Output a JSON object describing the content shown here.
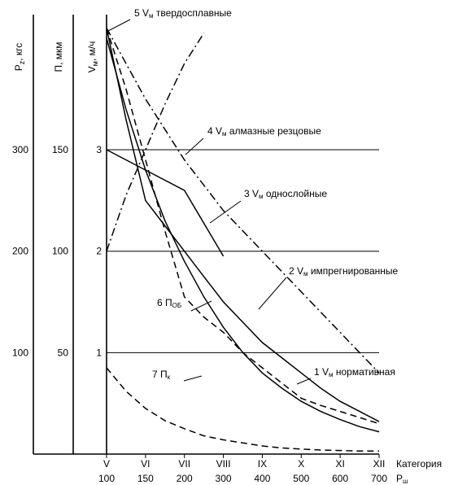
{
  "chart_data": {
    "type": "line",
    "title": "",
    "x_categories": [
      "V",
      "VI",
      "VII",
      "VIII",
      "IX",
      "X",
      "XI",
      "XII"
    ],
    "x_p_values": [
      "100",
      "150",
      "200",
      "300",
      "400",
      "500",
      "600",
      "700"
    ],
    "x_axis_label_top": "Категория",
    "x_axis_label_bottom": "Р",
    "x_axis_label_bottom_sub": "ш",
    "axes": [
      {
        "key": "pz",
        "label": "P",
        "label_sub": "z",
        "label_suffix": ", кгс",
        "ticks": [
          "100",
          "200",
          "300"
        ],
        "tick_values": [
          100,
          200,
          300
        ]
      },
      {
        "key": "p",
        "label": "П, мкм",
        "label_sub": "",
        "label_suffix": "",
        "ticks": [
          "50",
          "100",
          "150"
        ],
        "tick_values": [
          50,
          100,
          150
        ]
      },
      {
        "key": "vm",
        "label": "V",
        "label_sub": "м",
        "label_suffix": ", м/ч",
        "ticks": [
          "1",
          "2",
          "3"
        ],
        "tick_values": [
          1,
          2,
          3
        ]
      }
    ],
    "ylim_vm": [
      0,
      4.3
    ],
    "grid_vm": [
      1,
      2,
      3
    ],
    "series": [
      {
        "id": "1",
        "prefix": "1 V",
        "sub": "м",
        "suffix": " нормативная",
        "dash": "solid",
        "x": [
          0,
          0.5,
          1,
          1.5,
          2,
          2.5,
          3,
          3.5,
          4,
          4.5,
          5,
          5.5,
          6,
          6.5,
          7
        ],
        "y": [
          4.1,
          3.4,
          2.8,
          2.3,
          1.9,
          1.55,
          1.25,
          1.0,
          0.8,
          0.65,
          0.52,
          0.42,
          0.34,
          0.27,
          0.22
        ]
      },
      {
        "id": "2",
        "prefix": "2 V",
        "sub": "м",
        "suffix": " импрегнированные",
        "dash": "solid",
        "x": [
          0,
          0.5,
          1,
          1.5,
          2,
          2.5,
          3,
          3.5,
          4,
          4.5,
          5,
          5.5,
          6,
          6.5,
          7
        ],
        "y": [
          4.2,
          3.3,
          2.5,
          2.25,
          2.0,
          1.75,
          1.5,
          1.3,
          1.1,
          0.95,
          0.8,
          0.65,
          0.52,
          0.42,
          0.32
        ]
      },
      {
        "id": "3",
        "prefix": "3 V",
        "sub": "м",
        "suffix": " однослойные",
        "dash": "solid",
        "x": [
          0,
          1,
          2,
          3
        ],
        "y": [
          3.0,
          2.8,
          2.6,
          1.95
        ]
      },
      {
        "id": "4",
        "prefix": "4 V",
        "sub": "м",
        "suffix": " алмазные резцовые",
        "dash": "dashdot",
        "x": [
          0,
          0.5,
          1,
          1.5,
          2,
          2.5
        ],
        "y": [
          2.0,
          2.55,
          3.0,
          3.45,
          3.85,
          4.15
        ]
      },
      {
        "id": "5",
        "prefix": "5 V",
        "sub": "м",
        "suffix": " твердосплавные",
        "dash": "dashdot",
        "x": [
          0,
          1,
          2,
          3,
          4,
          5,
          6,
          7
        ],
        "y": [
          4.2,
          3.5,
          2.9,
          2.4,
          2.0,
          1.6,
          1.2,
          0.8
        ]
      },
      {
        "id": "6",
        "prefix": "6 П",
        "sub": "ОБ",
        "suffix": "",
        "dash": "dashed",
        "x": [
          0,
          0.5,
          1,
          1.5,
          2,
          2.5,
          3,
          3.5,
          4,
          4.5,
          5,
          5.5,
          6,
          6.5,
          7
        ],
        "y": [
          4.2,
          3.6,
          2.9,
          2.2,
          1.55,
          1.35,
          1.2,
          1.0,
          0.85,
          0.7,
          0.55,
          0.48,
          0.42,
          0.36,
          0.3
        ]
      },
      {
        "id": "7",
        "prefix": "7 П",
        "sub": "к",
        "suffix": "",
        "dash": "dashed",
        "x": [
          0,
          0.5,
          1,
          1.5,
          2,
          2.5,
          3,
          3.5,
          4,
          4.5,
          5,
          5.5,
          6,
          6.5,
          7
        ],
        "y": [
          0.85,
          0.62,
          0.45,
          0.33,
          0.25,
          0.18,
          0.14,
          0.11,
          0.08,
          0.06,
          0.05,
          0.04,
          0.035,
          0.03,
          0.03
        ]
      }
    ]
  }
}
